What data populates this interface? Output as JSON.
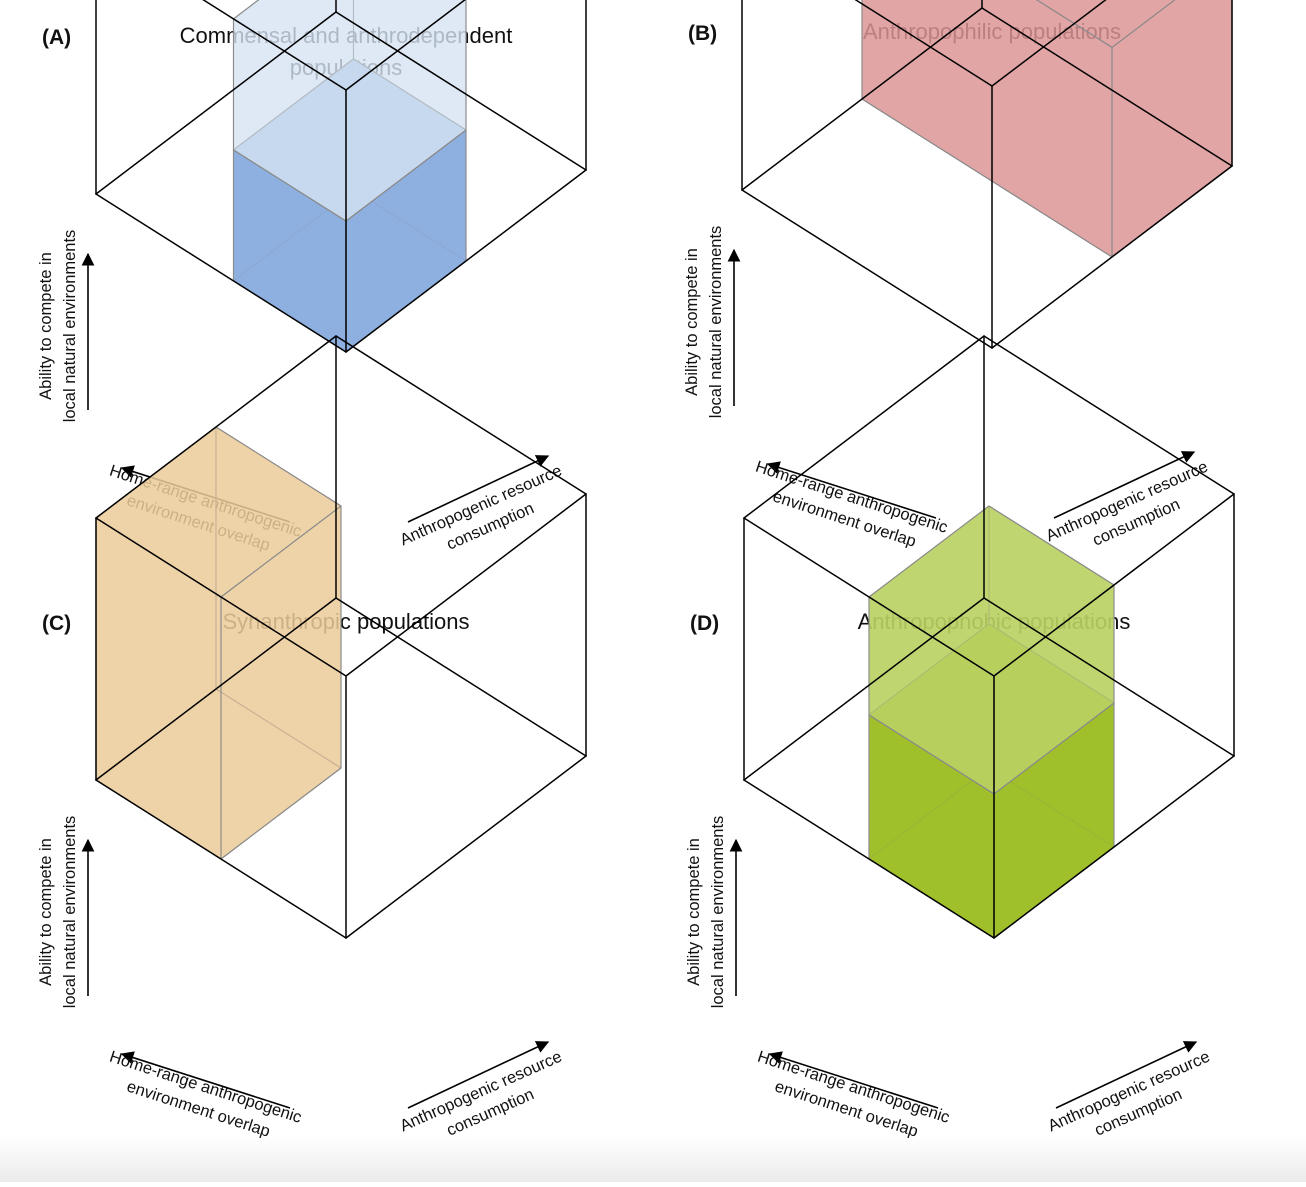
{
  "panels": [
    {
      "letter": "(A)",
      "title_lines": [
        "Commensal and anthrodependent",
        "populations"
      ],
      "fill_color": "#8caee0",
      "light_fill_color": "#d6e3f3"
    },
    {
      "letter": "(B)",
      "title_lines": [
        "Anthropophilic populations"
      ],
      "fill_color": "#dc9595"
    },
    {
      "letter": "(C)",
      "title_lines": [
        "Synanthropic populations"
      ],
      "fill_color": "#ebcb99"
    },
    {
      "letter": "(D)",
      "title_lines": [
        "Anthropophobic populations"
      ],
      "fill_color": "#9cbe26",
      "light_fill_color": "#b9d163"
    }
  ],
  "axes": {
    "vertical_lines": [
      "Ability to compete in",
      "local natural environments"
    ],
    "left_lines": [
      "Home-range anthropogenic",
      "environment overlap"
    ],
    "right_lines": [
      "Anthropogenic resource",
      "consumption"
    ]
  },
  "colors": {
    "edge": "#000000",
    "inner_edge": "#8a8a8a"
  }
}
